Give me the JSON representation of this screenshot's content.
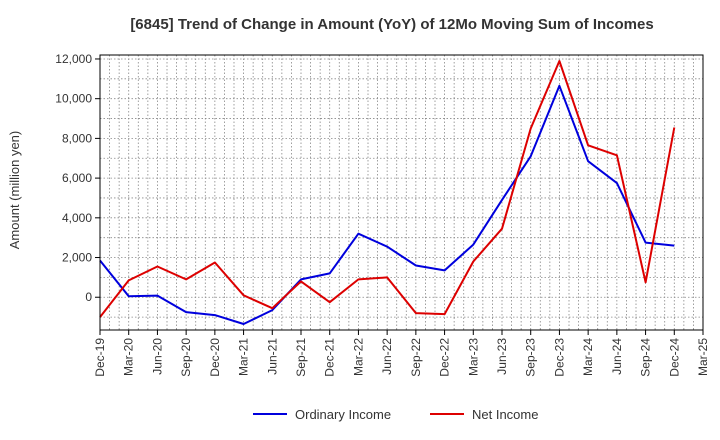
{
  "chart_data": {
    "type": "line",
    "title": "[6845]  Trend of Change in Amount (YoY) of 12Mo Moving Sum of Incomes",
    "ylabel": "Amount (million yen)",
    "xlabel": "",
    "categories": [
      "Dec-19",
      "Mar-20",
      "Jun-20",
      "Sep-20",
      "Dec-20",
      "Mar-21",
      "Jun-21",
      "Sep-21",
      "Dec-21",
      "Mar-22",
      "Jun-22",
      "Sep-22",
      "Dec-22",
      "Mar-23",
      "Jun-23",
      "Sep-23",
      "Dec-23",
      "Mar-24",
      "Jun-24",
      "Sep-24",
      "Dec-24",
      "Mar-25"
    ],
    "y_ticks": [
      "0",
      "2,000",
      "4,000",
      "6,000",
      "8,000",
      "10,000",
      "12,000"
    ],
    "ylim": [
      -1650,
      12200
    ],
    "grid": true,
    "legend_position": "bottom",
    "series": [
      {
        "name": "Ordinary Income",
        "color": "#0000dd",
        "values": [
          1850,
          50,
          80,
          -750,
          -900,
          -1350,
          -650,
          900,
          1200,
          3200,
          2550,
          1600,
          1350,
          2650,
          4900,
          7100,
          10650,
          6850,
          5750,
          2750,
          2600,
          null
        ]
      },
      {
        "name": "Net Income",
        "color": "#dd0000",
        "values": [
          -1000,
          850,
          1550,
          900,
          1750,
          100,
          -550,
          800,
          -250,
          900,
          1000,
          -800,
          -850,
          1800,
          3450,
          8500,
          11900,
          7650,
          7150,
          750,
          8550,
          null
        ]
      }
    ]
  }
}
